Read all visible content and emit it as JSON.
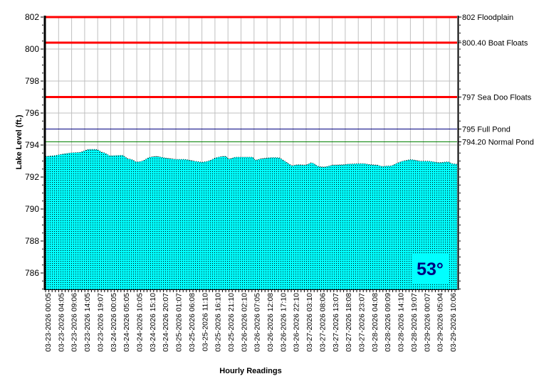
{
  "chart_data": {
    "type": "area",
    "xlabel": "Hourly Readings",
    "ylabel": "Lake Level (ft.)",
    "ylim": [
      785,
      802
    ],
    "yticks": [
      786,
      788,
      790,
      792,
      794,
      796,
      798,
      800,
      802
    ],
    "grid": true,
    "hours_total": 155,
    "xtick_labels": [
      "03-23-2026 00:05",
      "03-23-2026 04:05",
      "03-23-2026 09:06",
      "03-23-2026 14:05",
      "03-23-2026 19:07",
      "03-24-2026 00:05",
      "03-24-2026 05:05",
      "03-24-2026 10:05",
      "03-24-2026 15:10",
      "03-24-2026 20:07",
      "03-25-2026 01:07",
      "03-25-2026 06:08",
      "03-25-2026 11:10",
      "03-25-2026 16:10",
      "03-25-2026 21:10",
      "03-26-2026 02:10",
      "03-26-2026 07:05",
      "03-26-2026 12:08",
      "03-26-2026 17:10",
      "03-26-2026 22:10",
      "03-27-2026 03:10",
      "03-27-2026 08:06",
      "03-27-2026 13:07",
      "03-27-2026 18:08",
      "03-27-2026 23:07",
      "03-28-2026 04:08",
      "03-28-2026 09:09",
      "03-28-2026 14:10",
      "03-28-2026 19:07",
      "03-29-2026 00:07",
      "03-29-2026 05:04",
      "03-29-2026 10:06"
    ],
    "series": [
      {
        "name": "Lake Level",
        "color": "#00ffff",
        "x": [
          0,
          3.4,
          6.1,
          9.7,
          13.2,
          15.9,
          19.5,
          20.8,
          21.7,
          22.3,
          23.5,
          25.7,
          29.3,
          30.7,
          32.5,
          34.2,
          36.5,
          39.2,
          41.8,
          45.4,
          49,
          52.6,
          56.1,
          58.8,
          61.5,
          64.2,
          67.8,
          69.1,
          71.3,
          74.9,
          78,
          78.9,
          81.2,
          84.7,
          87.9,
          90.1,
          92.8,
          94.6,
          98.2,
          100.4,
          102.6,
          105.3,
          108,
          112.5,
          114.3,
          119.6,
          122.3,
          125,
          126.8,
          128.6,
          130.4,
          132.1,
          133.9,
          137.5,
          141.1,
          144.6,
          148.2,
          151.8,
          152.7,
          155
        ],
        "y": [
          793.29,
          793.33,
          793.42,
          793.51,
          793.54,
          793.72,
          793.72,
          793.59,
          793.44,
          793.59,
          793.33,
          793.33,
          793.36,
          793.14,
          793.1,
          792.92,
          792.99,
          793.24,
          793.29,
          793.18,
          793.1,
          793.1,
          792.99,
          792.92,
          792.99,
          793.21,
          793.32,
          793.1,
          793.24,
          793.24,
          793.24,
          793.04,
          793.14,
          793.21,
          793.21,
          792.99,
          792.69,
          792.77,
          792.74,
          792.92,
          792.65,
          792.62,
          792.74,
          792.77,
          792.81,
          792.84,
          792.77,
          792.74,
          792.65,
          792.69,
          792.69,
          792.84,
          792.96,
          793.1,
          792.99,
          792.99,
          792.89,
          792.96,
          792.84,
          792.8
        ]
      }
    ],
    "reference_lines": [
      {
        "value": 802,
        "label": "802 Floodplain",
        "color": "#ff0000",
        "width": 3
      },
      {
        "value": 800.4,
        "label": "800.40 Boat Floats",
        "color": "#ff0000",
        "width": 3
      },
      {
        "value": 797,
        "label": "797 Sea Doo Floats",
        "color": "#ff0000",
        "width": 3
      },
      {
        "value": 795,
        "label": "795 Full Pond",
        "color": "#000080",
        "width": 1
      },
      {
        "value": 794.2,
        "label": "794.20 Normal Pond",
        "color": "#008000",
        "width": 1
      }
    ],
    "annotation": {
      "temperature": "53°",
      "color": "#000080"
    }
  }
}
